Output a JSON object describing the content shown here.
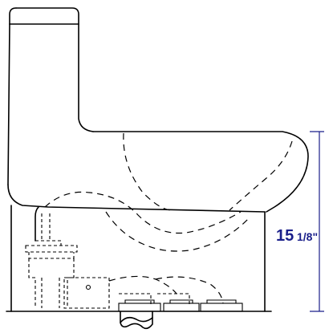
{
  "dimension": {
    "main": "15",
    "fraction": "1/8\"",
    "color": "#1a1f8a"
  },
  "drawing": {
    "line_color": "#000000",
    "background": "#ffffff"
  }
}
